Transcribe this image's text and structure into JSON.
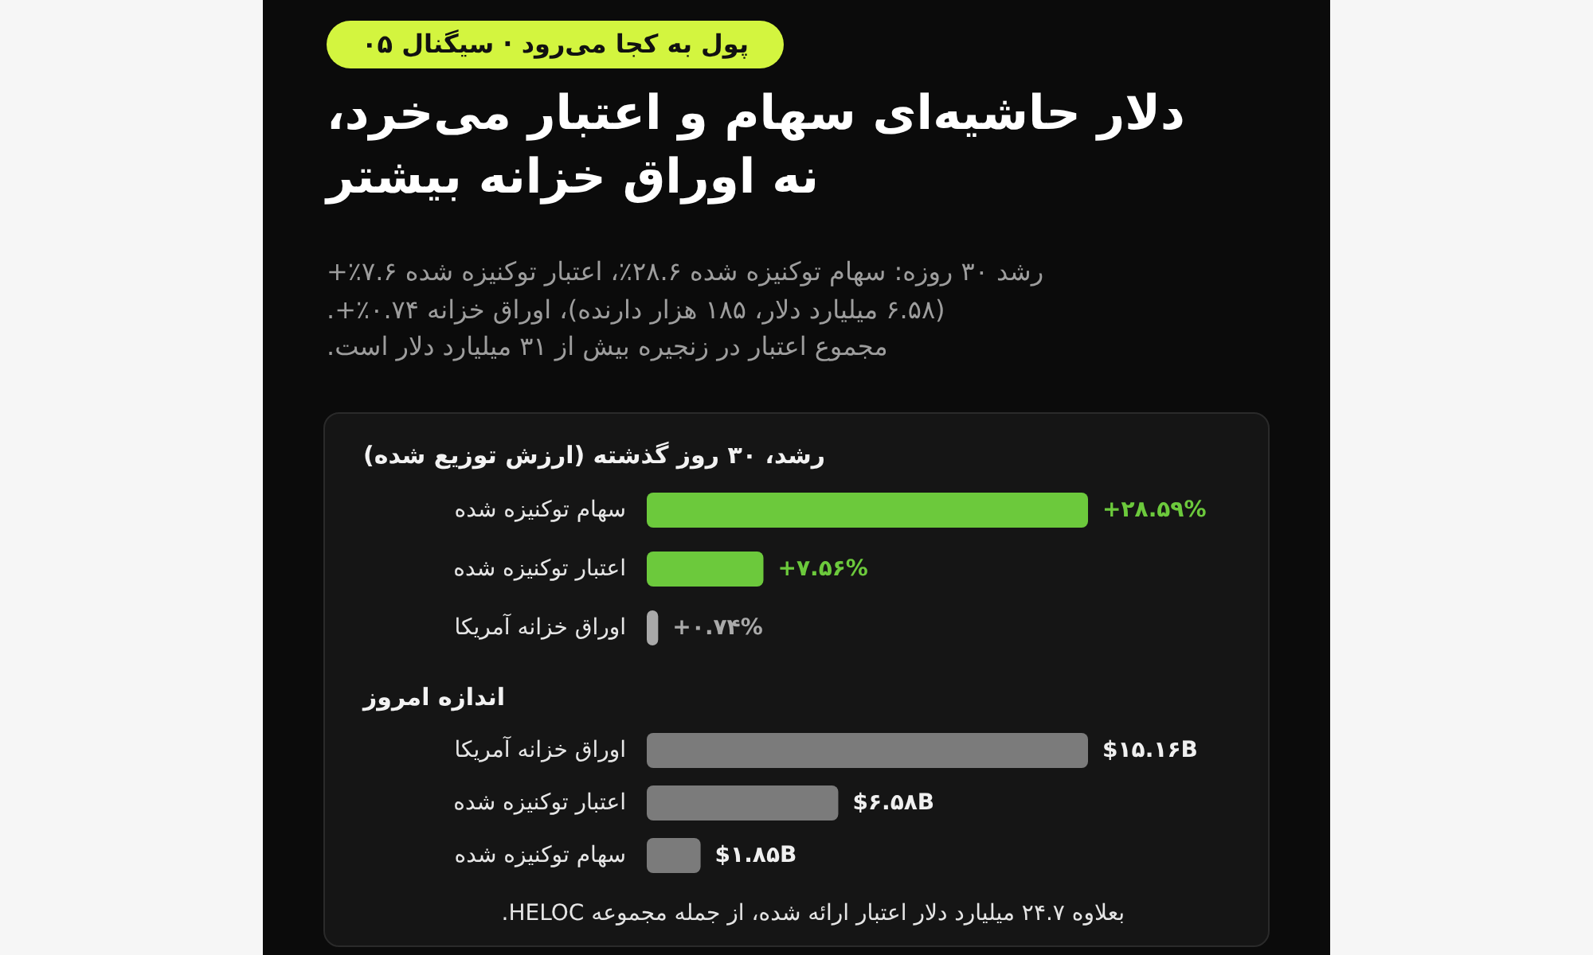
{
  "chart_data": [
    {
      "type": "other",
      "title": "دلار حاشیه‌ای سهام و اعتبار می‌خرد، نه اوراق خزانه بیشتر",
      "subtitle": "رشد ۳۰ روزه: سهام توکنیزه شده ۲۸.۶٪، اعتبار توکنیزه شده ۷.۶٪+ (۶.۵۸ میلیارد دلار، ۱۸۵ هزار دارنده)، اوراق خزانه ۰.۷۴٪+.\nمجموع اعتبار در زنجیره بیش از ۳۱ میلیارد دلار است.",
      "annotations": [
        "پول به کجا می‌رود · سیگنال ۰۵"
      ]
    },
    {
      "type": "bar",
      "orientation": "horizontal",
      "title": "رشد، ۳۰ روز گذشته (ارزش توزیع شده)",
      "categories": [
        "سهام توکنیزه شده",
        "اعتبار توکنیزه شده",
        "اوراق خزانه آمریکا"
      ],
      "values": [
        28.59,
        7.56,
        0.74
      ],
      "colors": [
        "#6cc93c",
        "#6cc93c",
        "#a9a9a9"
      ],
      "value_labels": [
        "+۲۸.۵۹%",
        "+۷.۵۶%",
        "+۰.۷۴%"
      ]
    },
    {
      "type": "bar",
      "orientation": "horizontal",
      "title": "اندازه امروز",
      "categories": [
        "اوراق خزانه آمریکا",
        "اعتبار توکنیزه شده",
        "سهام توکنیزه شده"
      ],
      "values": [
        15.16,
        6.58,
        1.85
      ],
      "color": "#7b7b7b",
      "value_labels": [
        "$۱۵.۱۶B",
        "$۶.۵۸B",
        "$۱.۸۵B"
      ],
      "annotations": [
        "بعلاوه ۲۴.۷ میلیارد دلار اعتبار ارائه شده، از جمله مجموعه HELOC."
      ]
    }
  ]
}
